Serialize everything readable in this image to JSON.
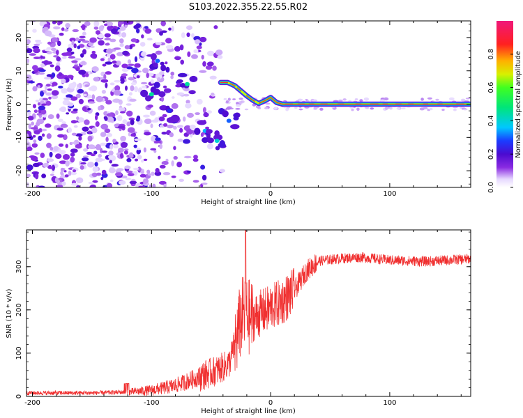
{
  "title": "S103.2022.355.22.55.R02",
  "chart_data": [
    {
      "type": "heatmap",
      "xlabel": "Height of straight line (km)",
      "ylabel": "Frequency (Hz)",
      "xlim": [
        -205,
        168
      ],
      "ylim": [
        -25,
        25
      ],
      "x_ticks": [
        -200,
        -100,
        0,
        100
      ],
      "y_ticks": [
        -20,
        -10,
        0,
        10,
        20
      ],
      "colorbar": {
        "label": "Normalized spectral amplitude",
        "range": [
          0,
          1
        ],
        "ticks": [
          "0.0",
          "0.2",
          "0.4",
          "0.6",
          "0.8"
        ]
      },
      "noise_region_x": [
        -205,
        -40
      ],
      "track": [
        {
          "x": -42,
          "y": 6.5
        },
        {
          "x": -36,
          "y": 6.5
        },
        {
          "x": -30,
          "y": 5.5
        },
        {
          "x": -25,
          "y": 4.0
        },
        {
          "x": -20,
          "y": 2.5
        },
        {
          "x": -15,
          "y": 1.2
        },
        {
          "x": -10,
          "y": 0.2
        },
        {
          "x": -5,
          "y": 1.0
        },
        {
          "x": 0,
          "y": 2.0
        },
        {
          "x": 5,
          "y": 0.5
        },
        {
          "x": 10,
          "y": 0.0
        },
        {
          "x": 168,
          "y": 0.0
        }
      ],
      "features": [
        {
          "x": -95,
          "y": 13,
          "amp": 0.3
        },
        {
          "x": -100,
          "y": 3,
          "amp": 0.45
        },
        {
          "x": -85,
          "y": -2,
          "amp": 0.25
        },
        {
          "x": -70,
          "y": 6,
          "amp": 0.45
        },
        {
          "x": -55,
          "y": -8,
          "amp": 0.35
        },
        {
          "x": -45,
          "y": -11,
          "amp": 0.4
        },
        {
          "x": -35,
          "y": -5,
          "amp": 0.3
        }
      ]
    },
    {
      "type": "line",
      "xlabel": "Height of straight line (km)",
      "ylabel": "SNR (10 * v/v)",
      "xlim": [
        -205,
        168
      ],
      "ylim": [
        0,
        385
      ],
      "x_ticks": [
        -200,
        -100,
        0,
        100
      ],
      "y_ticks": [
        0,
        100,
        200,
        300
      ],
      "color": "#f03030",
      "trend": [
        {
          "x": -205,
          "y": 8
        },
        {
          "x": -150,
          "y": 8
        },
        {
          "x": -120,
          "y": 10
        },
        {
          "x": -100,
          "y": 14
        },
        {
          "x": -80,
          "y": 25
        },
        {
          "x": -60,
          "y": 45
        },
        {
          "x": -45,
          "y": 60
        },
        {
          "x": -35,
          "y": 75
        },
        {
          "x": -28,
          "y": 140
        },
        {
          "x": -24,
          "y": 190
        },
        {
          "x": -20,
          "y": 185
        },
        {
          "x": -15,
          "y": 180
        },
        {
          "x": -10,
          "y": 190
        },
        {
          "x": 0,
          "y": 205
        },
        {
          "x": 10,
          "y": 220
        },
        {
          "x": 20,
          "y": 245
        },
        {
          "x": 30,
          "y": 290
        },
        {
          "x": 40,
          "y": 313
        },
        {
          "x": 55,
          "y": 318
        },
        {
          "x": 75,
          "y": 322
        },
        {
          "x": 100,
          "y": 315
        },
        {
          "x": 130,
          "y": 312
        },
        {
          "x": 168,
          "y": 318
        }
      ],
      "peak": {
        "x": -21,
        "y": 385
      }
    }
  ]
}
